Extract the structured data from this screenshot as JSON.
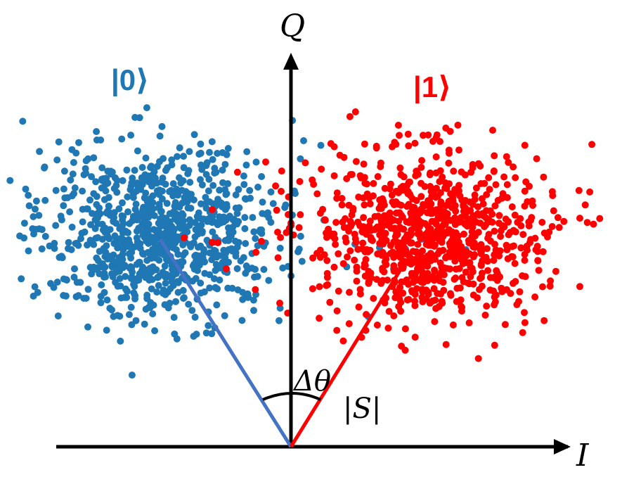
{
  "axes": {
    "x_label": "I",
    "y_label": "Q",
    "axis_color": "#000000"
  },
  "states": [
    {
      "label": "|0⟩",
      "color": "#1f77b4",
      "vector_color": "#4472c4"
    },
    {
      "label": "|1⟩",
      "color": "#ff0000",
      "vector_color": "#ff0000"
    }
  ],
  "annotations": {
    "angle": "Δθ",
    "magnitude": "|S|"
  }
}
